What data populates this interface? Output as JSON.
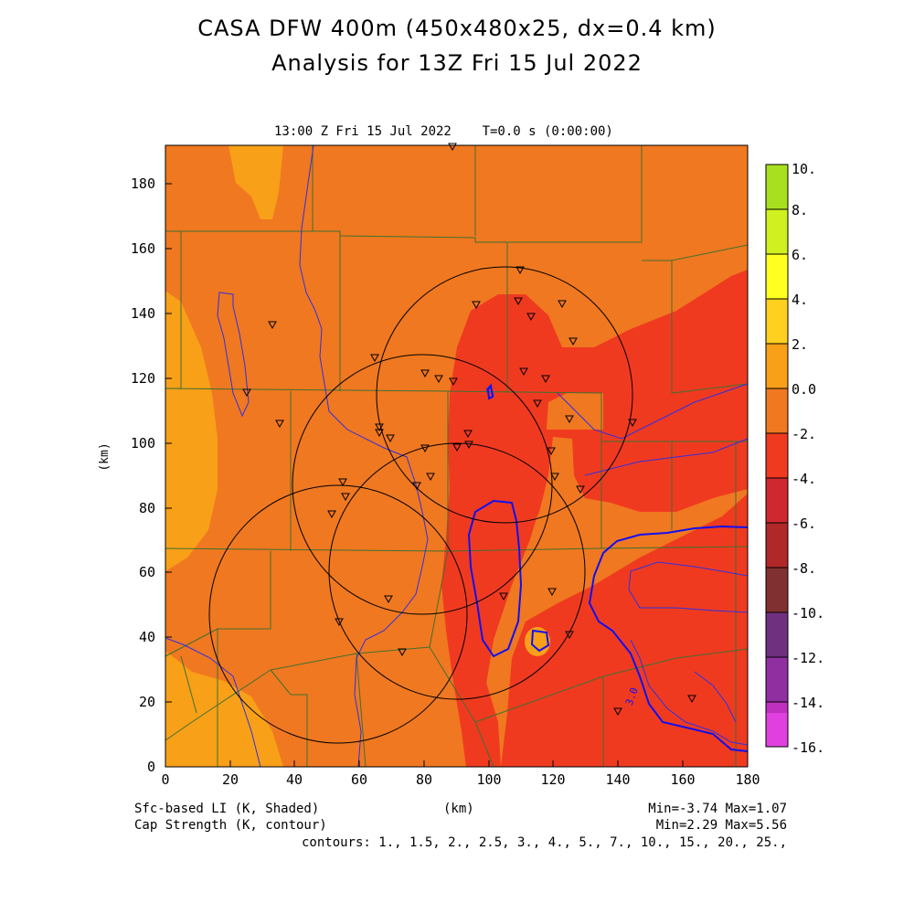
{
  "header": {
    "title_line1": "CASA DFW 400m (450x480x25, dx=0.4 km)",
    "title_line2": "Analysis for 13Z Fri 15 Jul 2022"
  },
  "plot": {
    "time_label": "13:00 Z Fri 15 Jul 2022    T=0.0 s (0:00:00)",
    "x_axis": {
      "label": "(km)",
      "range": [
        0,
        180
      ],
      "ticks": [
        "0",
        "20",
        "40",
        "60",
        "80",
        "100",
        "120",
        "140",
        "160",
        "180"
      ]
    },
    "y_axis": {
      "label": "(km)",
      "range": [
        0,
        192
      ],
      "ticks": [
        "0",
        "20",
        "40",
        "60",
        "80",
        "100",
        "120",
        "140",
        "160",
        "180"
      ]
    },
    "contour_label": "3.0",
    "colors": {
      "background_orange": "#f07820",
      "red_region": "#f03a20",
      "light_orange": "#f8a018",
      "county_lines": "#407030",
      "rivers": "#3030e0",
      "contour": "#1010f0"
    }
  },
  "colorbar": {
    "labels": [
      "10.",
      "8.",
      "6.",
      "4.",
      "2.",
      "0.0",
      "-2.",
      "-4.",
      "-6.",
      "-8.",
      "-10.",
      "-12.",
      "-14.",
      "-16."
    ],
    "bands": [
      "#a8e020",
      "#d0f020",
      "#ffff20",
      "#ffd020",
      "#f8a018",
      "#f07820",
      "#f03a20",
      "#d02830",
      "#b02828",
      "#803030",
      "#703080",
      "#9030a0",
      "#c030c0",
      "#e040e0"
    ]
  },
  "footer": {
    "left_line1": "Sfc-based LI (K, Shaded)",
    "left_line2": "Cap Strength (K, contour)",
    "center": "(km)",
    "right_line1": "Min=-3.74 Max=1.07",
    "right_line2": "Min=2.29 Max=5.56",
    "contours": "contours: 1., 1.5, 2., 2.5, 3., 4., 5., 7., 10., 15., 20., 25.,"
  }
}
